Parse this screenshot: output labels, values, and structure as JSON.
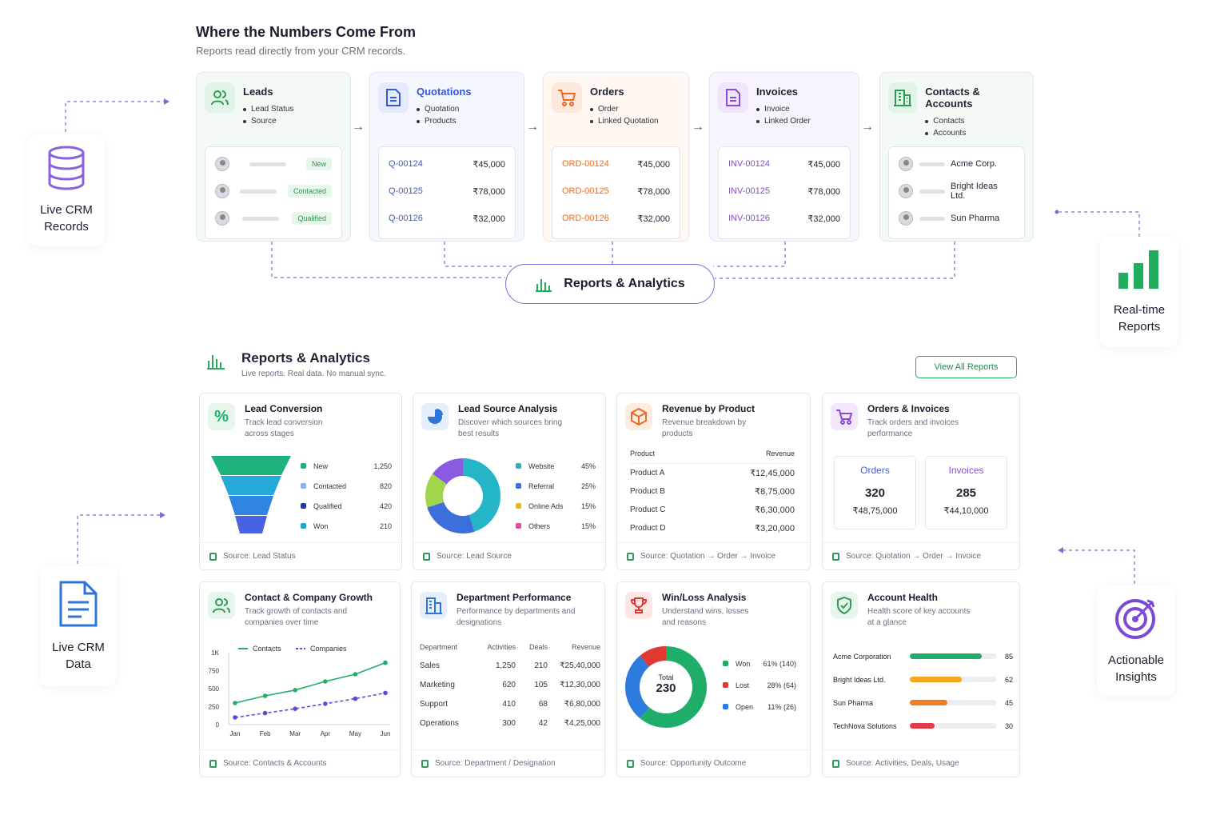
{
  "top": {
    "title": "Where the Numbers Come From",
    "subtitle": "Reports read directly from your CRM records."
  },
  "flow": [
    {
      "title": "Leads",
      "bullets": [
        "Lead Status",
        "Source"
      ],
      "color": "#2e9a55",
      "bg": "#f3faf5",
      "title_color": "#1a1d2e"
    },
    {
      "title": "Quotations",
      "bullets": [
        "Quotation",
        "Products"
      ],
      "color": "#3558d9",
      "bg": "#f4f7fe",
      "title_color": "#3558d9"
    },
    {
      "title": "Orders",
      "bullets": [
        "Order",
        "Linked Quotation"
      ],
      "color": "#ea6b23",
      "bg": "#fff7f1",
      "title_color": "#1a1d2e"
    },
    {
      "title": "Invoices",
      "bullets": [
        "Invoice",
        "Linked Order"
      ],
      "color": "#8a4bd8",
      "bg": "#f8f4fe",
      "title_color": "#1a1d2e"
    },
    {
      "title": "Contacts & Accounts",
      "bullets": [
        "Contacts",
        "Accounts"
      ],
      "color": "#2e9a55",
      "bg": "#f3faf5",
      "title_color": "#1a1d2e"
    }
  ],
  "leads_rows": [
    "New",
    "Contacted",
    "Qualified"
  ],
  "quote_rows": [
    {
      "id": "Q-00124",
      "amt": "₹45,000"
    },
    {
      "id": "Q-00125",
      "amt": "₹78,000"
    },
    {
      "id": "Q-00126",
      "amt": "₹32,000"
    }
  ],
  "order_rows": [
    {
      "id": "ORD-00124",
      "amt": "₹45,000"
    },
    {
      "id": "ORD-00125",
      "amt": "₹78,000"
    },
    {
      "id": "ORD-00126",
      "amt": "₹32,000"
    }
  ],
  "invoice_rows": [
    {
      "id": "INV-00124",
      "amt": "₹45,000"
    },
    {
      "id": "INV-00125",
      "amt": "₹78,000"
    },
    {
      "id": "INV-00126",
      "amt": "₹32,000"
    }
  ],
  "account_rows": [
    "Acme Corp.",
    "Bright Ideas Ltd.",
    "Sun Pharma"
  ],
  "hub": "Reports & Analytics",
  "side": {
    "records": "Live CRM\nRecords",
    "realtime": "Real-time\nReports",
    "data": "Live CRM\nData",
    "insights": "Actionable\nInsights"
  },
  "section": {
    "title": "Reports & Analytics",
    "subtitle": "Live reports. Real data. No manual sync.",
    "button": "View All Reports"
  },
  "cards": {
    "lead_conversion": {
      "title": "Lead Conversion",
      "desc": "Track lead conversion across stages",
      "source": "Source: Lead Status",
      "items": [
        {
          "label": "New",
          "value": "1,250",
          "color": "#1fb27a"
        },
        {
          "label": "Contacted",
          "value": "820",
          "color": "#8fb0ef"
        },
        {
          "label": "Qualified",
          "value": "420",
          "color": "#1e3aa8"
        },
        {
          "label": "Won",
          "value": "210",
          "color": "#23a9c5"
        }
      ]
    },
    "lead_source": {
      "title": "Lead Source Analysis",
      "desc": "Discover which sources bring best results",
      "source": "Source: Lead Source",
      "items": [
        {
          "label": "Website",
          "value": "45%",
          "color": "#24b5c8"
        },
        {
          "label": "Referral",
          "value": "25%",
          "color": "#3d6fdc"
        },
        {
          "label": "Online Ads",
          "value": "15%",
          "color": "#a2d44c"
        },
        {
          "label": "Others",
          "value": "15%",
          "color": "#e04ca8"
        }
      ]
    },
    "revenue": {
      "title": "Revenue by Product",
      "desc": "Revenue breakdown by products",
      "source": "Source: Quotation → Order → Invoice",
      "header": [
        "Product",
        "Revenue"
      ],
      "rows": [
        {
          "p": "Product A",
          "r": "₹12,45,000"
        },
        {
          "p": "Product B",
          "r": "₹8,75,000"
        },
        {
          "p": "Product C",
          "r": "₹6,30,000"
        },
        {
          "p": "Product D",
          "r": "₹3,20,000"
        }
      ]
    },
    "orders": {
      "title": "Orders & Invoices",
      "desc": "Track orders and invoices performance",
      "source": "Source: Quotation → Order → Invoice",
      "orders_label": "Orders",
      "orders_count": "320",
      "orders_amt": "₹48,75,000",
      "inv_label": "Invoices",
      "inv_count": "285",
      "inv_amt": "₹44,10,000"
    },
    "growth": {
      "title": "Contact & Company Growth",
      "desc": "Track growth of contacts and companies over time",
      "source": "Source: Contacts & Accounts"
    },
    "dept": {
      "title": "Department Performance",
      "desc": "Performance by departments and designations",
      "source": "Source: Department / Designation",
      "header": [
        "Department",
        "Activities",
        "Deals",
        "Revenue"
      ],
      "rows": [
        [
          "Sales",
          "1,250",
          "210",
          "₹25,40,000"
        ],
        [
          "Marketing",
          "620",
          "105",
          "₹12,30,000"
        ],
        [
          "Support",
          "410",
          "68",
          "₹6,80,000"
        ],
        [
          "Operations",
          "300",
          "42",
          "₹4,25,000"
        ]
      ]
    },
    "winloss": {
      "title": "Win/Loss Analysis",
      "desc": "Understand wins, losses and reasons",
      "source": "Source: Opportunity Outcome",
      "total_label": "Total",
      "total": "230",
      "items": [
        {
          "label": "Won",
          "value": "61% (140)",
          "color": "#1fae6a"
        },
        {
          "label": "Lost",
          "value": "28% (64)",
          "color": "#e0392f"
        },
        {
          "label": "Open",
          "value": "11% (26)",
          "color": "#2e7be0"
        }
      ]
    },
    "health": {
      "title": "Account Health",
      "desc": "Health score of key accounts at a glance",
      "source": "Source: Activities, Deals, Usage",
      "rows": [
        {
          "name": "Acme Corporation",
          "score": "85",
          "color": "#1fae6a"
        },
        {
          "name": "Bright Ideas Ltd.",
          "score": "62",
          "color": "#f5a623"
        },
        {
          "name": "Sun Pharma",
          "score": "45",
          "color": "#f07d22"
        },
        {
          "name": "TechNova Solutions",
          "score": "30",
          "color": "#e33b4a"
        }
      ]
    }
  },
  "chart_data": [
    {
      "type": "line",
      "x": [
        "Jan",
        "Feb",
        "Mar",
        "Apr",
        "May",
        "Jun"
      ],
      "ylim": [
        0,
        1000
      ],
      "yticks": [
        "0",
        "250",
        "500",
        "750",
        "1K"
      ],
      "series": [
        {
          "name": "Contacts",
          "values": [
            300,
            400,
            480,
            600,
            700,
            860
          ],
          "color": "#1fae6a"
        },
        {
          "name": "Companies",
          "values": [
            100,
            160,
            220,
            290,
            360,
            440
          ],
          "color": "#5b4bd8"
        }
      ]
    },
    {
      "type": "pie",
      "labels": [
        "Website",
        "Referral",
        "Online Ads",
        "Others"
      ],
      "values": [
        45,
        25,
        15,
        15
      ]
    },
    {
      "type": "pie",
      "labels": [
        "Won",
        "Lost",
        "Open"
      ],
      "values": [
        61,
        28,
        11
      ]
    }
  ]
}
